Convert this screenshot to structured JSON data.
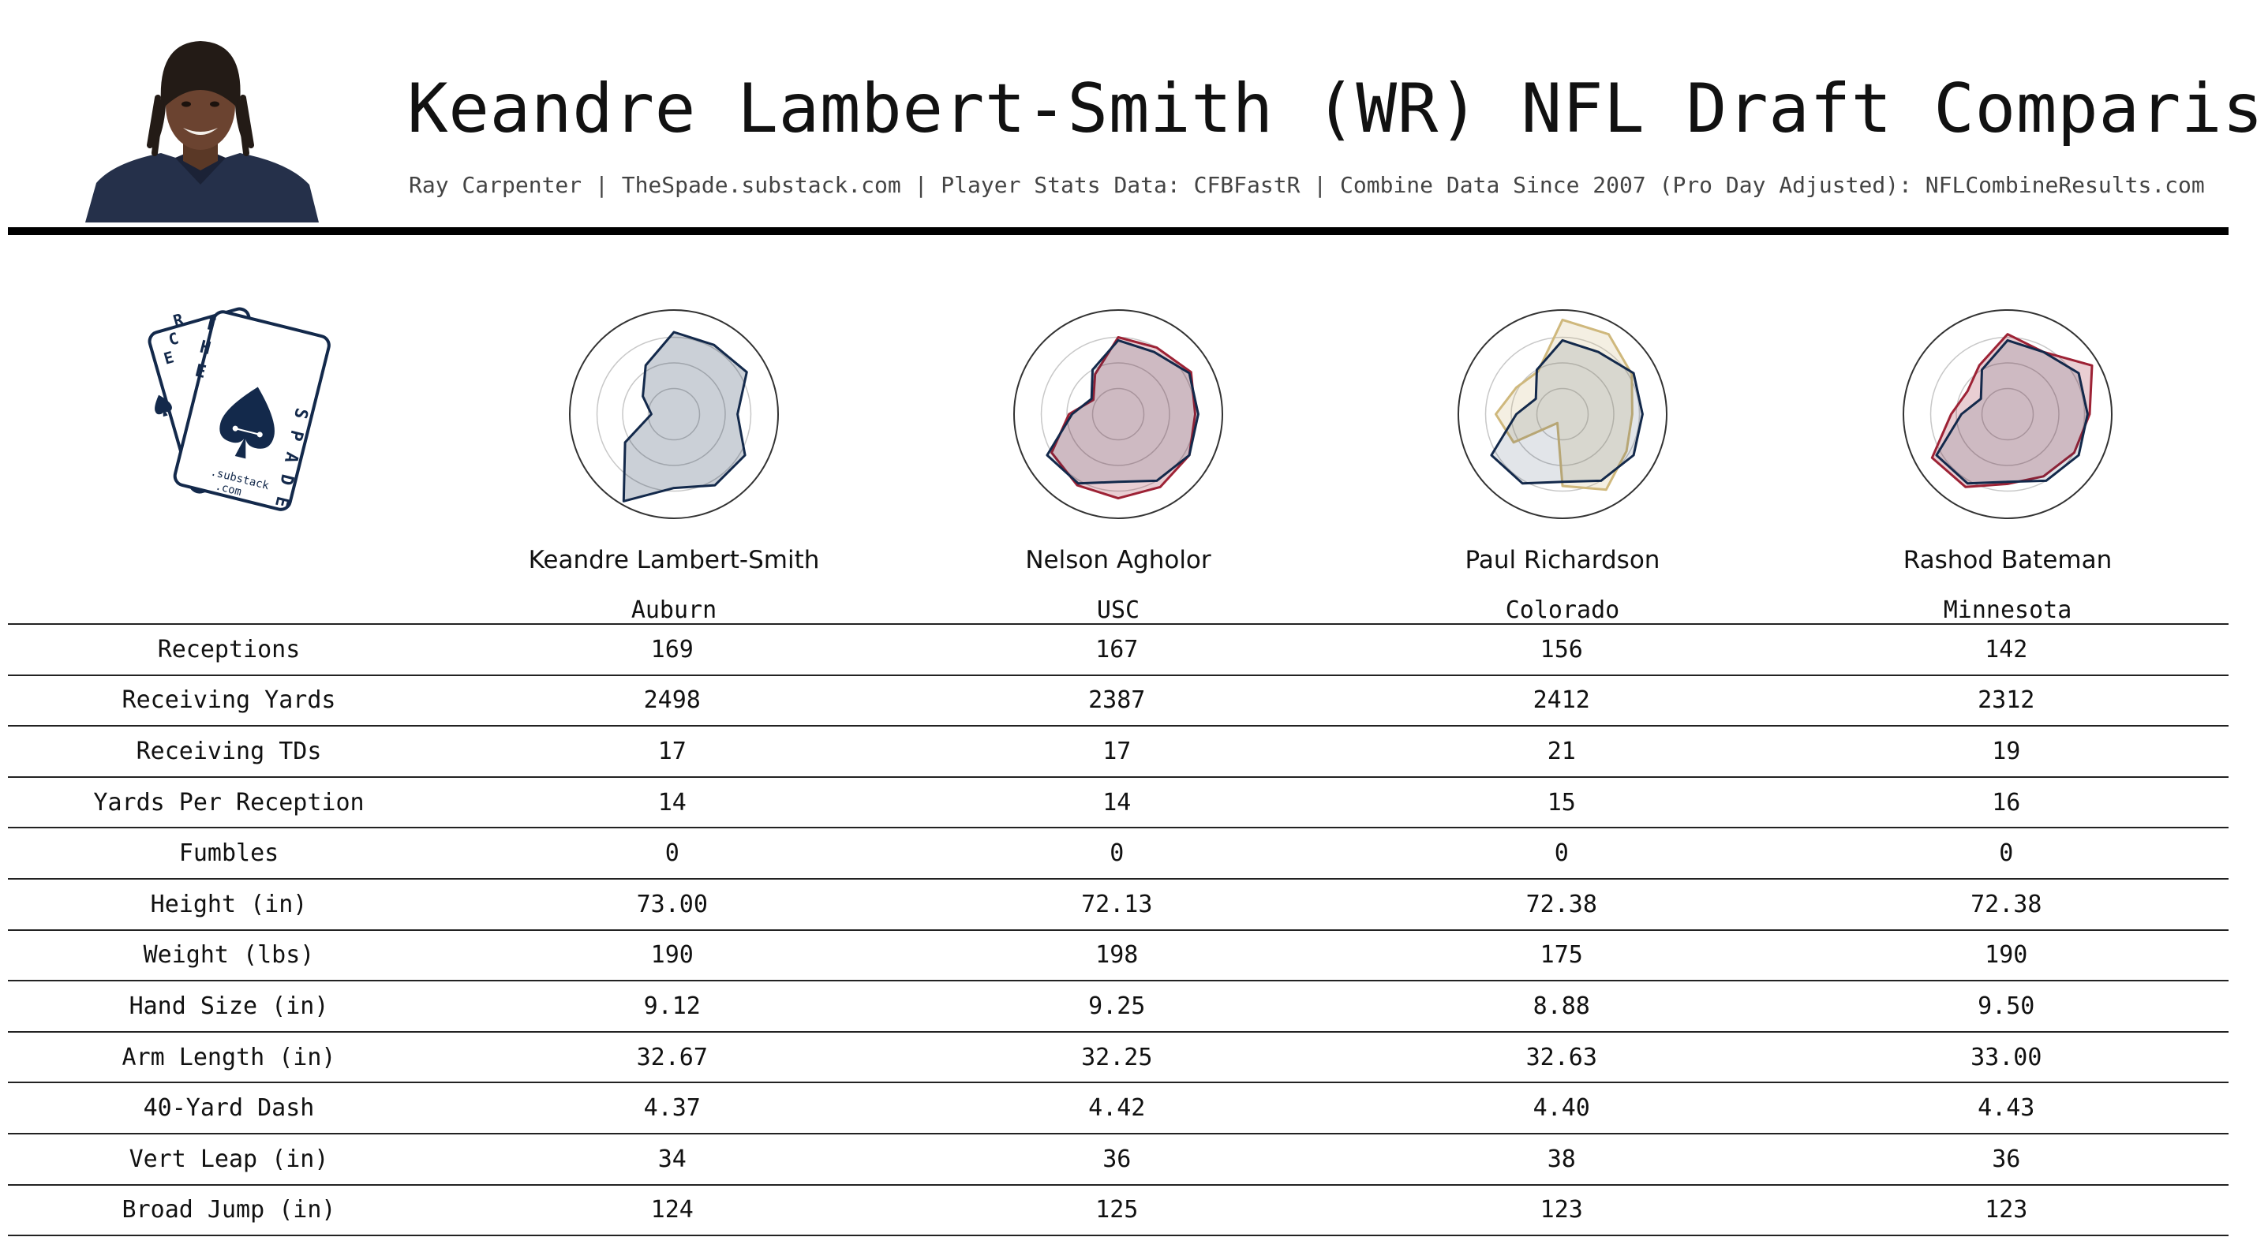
{
  "title": "Keandre Lambert-Smith (WR) NFL Draft Comparison",
  "subtitle": "Ray Carpenter | TheSpade.substack.com | Player Stats Data: CFBFastR | Combine Data Since 2007 (Pro Day Adjusted): NFLCombineResults.com",
  "logo": {
    "text_lines": [
      "THE",
      "RACE",
      "SPADE",
      ".substack",
      ".com"
    ]
  },
  "colors": {
    "primary": "#13294b",
    "usc": "#9d2235",
    "colorado": "#cfb87c",
    "minnesota": "#7a0019"
  },
  "players": [
    {
      "name": "Keandre Lambert-Smith",
      "school": "Auburn"
    },
    {
      "name": "Nelson Agholor",
      "school": "USC"
    },
    {
      "name": "Paul Richardson",
      "school": "Colorado"
    },
    {
      "name": "Rashod Bateman",
      "school": "Minnesota"
    }
  ],
  "table": {
    "rows": [
      {
        "label": "Receptions",
        "values": [
          "169",
          "167",
          "156",
          "142"
        ]
      },
      {
        "label": "Receiving Yards",
        "values": [
          "2498",
          "2387",
          "2412",
          "2312"
        ]
      },
      {
        "label": "Receiving TDs",
        "values": [
          "17",
          "17",
          "21",
          "19"
        ]
      },
      {
        "label": "Yards Per Reception",
        "values": [
          "14",
          "14",
          "15",
          "16"
        ]
      },
      {
        "label": "Fumbles",
        "values": [
          "0",
          "0",
          "0",
          "0"
        ]
      },
      {
        "label": "Height (in)",
        "values": [
          "73.00",
          "72.13",
          "72.38",
          "72.38"
        ]
      },
      {
        "label": "Weight (lbs)",
        "values": [
          "190",
          "198",
          "175",
          "190"
        ]
      },
      {
        "label": "Hand Size (in)",
        "values": [
          "9.12",
          "9.25",
          "8.88",
          "9.50"
        ]
      },
      {
        "label": "Arm Length (in)",
        "values": [
          "32.67",
          "32.25",
          "32.63",
          "33.00"
        ]
      },
      {
        "label": "40-Yard Dash",
        "values": [
          "4.37",
          "4.42",
          "4.40",
          "4.43"
        ]
      },
      {
        "label": "Vert Leap (in)",
        "values": [
          "34",
          "36",
          "38",
          "36"
        ]
      },
      {
        "label": "Broad Jump (in)",
        "values": [
          "124",
          "125",
          "123",
          "123"
        ]
      }
    ]
  },
  "chart_data": {
    "type": "radar",
    "axes_count": 12,
    "range": [
      0,
      1
    ],
    "base_player": {
      "name": "Keandre Lambert-Smith",
      "values": [
        0.8,
        0.78,
        0.82,
        0.62,
        0.8,
        0.8,
        0.72,
        0.98,
        0.55,
        0.22,
        0.35,
        0.55
      ]
    },
    "comparisons": [
      {
        "name": "Nelson Agholor",
        "color": "#9d2235",
        "values": [
          0.75,
          0.75,
          0.82,
          0.75,
          0.8,
          0.82,
          0.82,
          0.8,
          0.75,
          0.48,
          0.28,
          0.45
        ]
      },
      {
        "name": "Paul Richardson",
        "color": "#cfb87c",
        "values": [
          0.92,
          0.9,
          0.78,
          0.68,
          0.72,
          0.85,
          0.7,
          0.1,
          0.55,
          0.65,
          0.52,
          0.48
        ]
      },
      {
        "name": "Rashod Bateman",
        "color": "#9d2235",
        "values": [
          0.78,
          0.7,
          0.95,
          0.8,
          0.75,
          0.7,
          0.68,
          0.82,
          0.85,
          0.55,
          0.45,
          0.55
        ]
      }
    ]
  }
}
